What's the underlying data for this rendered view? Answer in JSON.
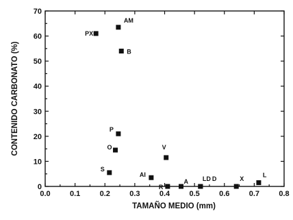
{
  "chart_data": {
    "type": "scatter",
    "title": "",
    "xlabel": "TAMAÑO MEDIO (mm)",
    "ylabel": "CONTENIDO CARBONATO (%)",
    "xlim": [
      0.0,
      0.8
    ],
    "ylim": [
      0,
      70
    ],
    "xticks": [
      0.0,
      0.1,
      0.2,
      0.3,
      0.4,
      0.5,
      0.6,
      0.7,
      0.8
    ],
    "xtick_labels": [
      "0.0",
      "0.1",
      "0.2",
      "0.3",
      "0.4",
      "0.5",
      "0.6",
      "0.7",
      "0.8"
    ],
    "yticks": [
      0,
      10,
      20,
      30,
      40,
      50,
      60,
      70
    ],
    "ytick_labels": [
      "0",
      "10",
      "20",
      "30",
      "40",
      "50",
      "60",
      "70"
    ],
    "grid": false,
    "legend": "none",
    "marker": "square",
    "color": "#111111",
    "points": [
      {
        "label": "PX",
        "x": 0.17,
        "y": 61
      },
      {
        "label": "AM",
        "x": 0.245,
        "y": 63.5
      },
      {
        "label": "B",
        "x": 0.255,
        "y": 54
      },
      {
        "label": "P",
        "x": 0.245,
        "y": 21
      },
      {
        "label": "O",
        "x": 0.235,
        "y": 14.5
      },
      {
        "label": "S",
        "x": 0.215,
        "y": 5.5
      },
      {
        "label": "V",
        "x": 0.405,
        "y": 11.5
      },
      {
        "label": "AI",
        "x": 0.355,
        "y": 3.5
      },
      {
        "label": "R",
        "x": 0.41,
        "y": 0
      },
      {
        "label": "A",
        "x": 0.455,
        "y": 0
      },
      {
        "label": "LD",
        "x": 0.52,
        "y": 0
      },
      {
        "label": "D",
        "x": 0.52,
        "y": 0
      },
      {
        "label": "X",
        "x": 0.64,
        "y": 0
      },
      {
        "label": "L",
        "x": 0.715,
        "y": 1.5
      }
    ]
  }
}
